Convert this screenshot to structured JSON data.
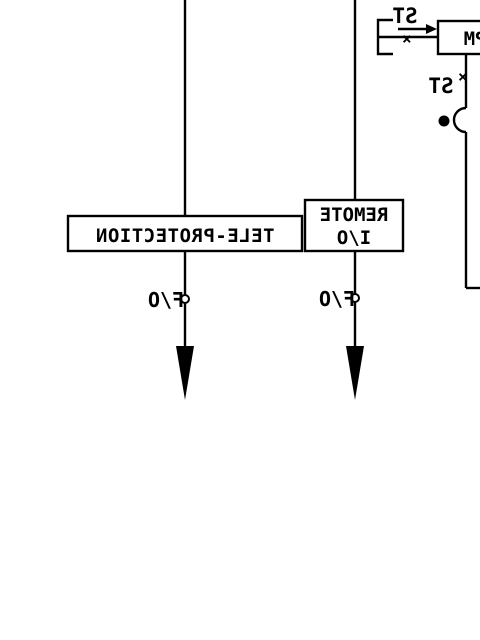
{
  "diagram": {
    "labels": {
      "teleprotection": "TELE-PROTECTION",
      "remote_line1": "REMOTE",
      "remote_line2": "I/O",
      "fiber_left": "F/O",
      "fiber_right": "F/O",
      "st_top": "ST",
      "st_mid": "ST",
      "mpm_box": "MPM"
    }
  }
}
